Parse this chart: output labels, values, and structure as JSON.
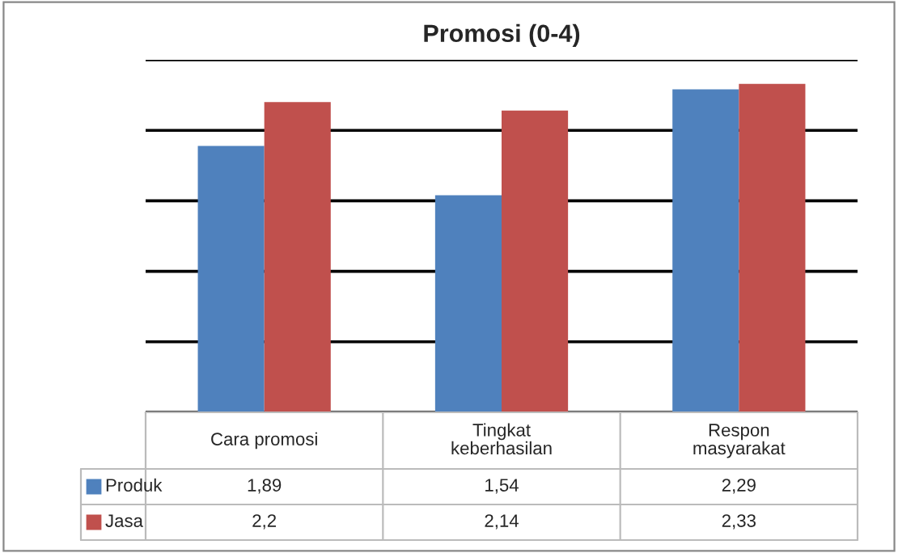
{
  "chart_data": {
    "type": "bar",
    "title": "Promosi (0-4)",
    "categories": [
      "Cara promosi",
      "Tingkat\nkeberhasilan",
      "Respon\nmasyarakat"
    ],
    "series": [
      {
        "name": "Produk",
        "color": "#4f81bd",
        "values": [
          1.89,
          1.54,
          2.29
        ],
        "value_labels": [
          "1,89",
          "1,54",
          "2,29"
        ]
      },
      {
        "name": "Jasa",
        "color": "#c0504d",
        "values": [
          2.2,
          2.14,
          2.33
        ],
        "value_labels": [
          "2,2",
          "2,14",
          "2,33"
        ]
      }
    ],
    "ylim": [
      0,
      2.5
    ],
    "yticks": [
      {
        "value": 0,
        "label": null
      },
      {
        "value": 0.5,
        "label": null
      },
      {
        "value": 1.0,
        "label": null
      },
      {
        "value": 1.5,
        "label": null
      },
      {
        "value": 2.0,
        "label": null
      },
      {
        "value": 2.5,
        "label": null
      }
    ],
    "grid": "y",
    "legend": "bottom left"
  }
}
